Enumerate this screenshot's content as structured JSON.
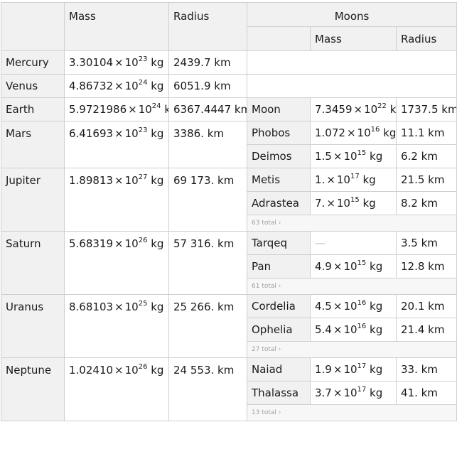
{
  "headers": {
    "mass": "Mass",
    "radius": "Radius",
    "moons": "Moons",
    "moon_mass": "Mass",
    "moon_radius": "Radius"
  },
  "planets": [
    {
      "name": "Mercury",
      "mass_mantissa": "3.30104",
      "mass_exp": "23",
      "radius": "2439.7 km",
      "moons": [],
      "total": ""
    },
    {
      "name": "Venus",
      "mass_mantissa": "4.86732",
      "mass_exp": "24",
      "radius": "6051.9 km",
      "moons": [],
      "total": ""
    },
    {
      "name": "Earth",
      "mass_mantissa": "5.9721986",
      "mass_exp": "24",
      "radius": "6367.4447 km",
      "moons": [
        {
          "name": "Moon",
          "mass_mantissa": "7.3459",
          "mass_exp": "22",
          "radius": "1737.5 km"
        }
      ],
      "total": ""
    },
    {
      "name": "Mars",
      "mass_mantissa": "6.41693",
      "mass_exp": "23",
      "radius": "3386. km",
      "moons": [
        {
          "name": "Phobos",
          "mass_mantissa": "1.072",
          "mass_exp": "16",
          "radius": "11.1 km"
        },
        {
          "name": "Deimos",
          "mass_mantissa": "1.5",
          "mass_exp": "15",
          "radius": "6.2 km"
        }
      ],
      "total": ""
    },
    {
      "name": "Jupiter",
      "mass_mantissa": "1.89813",
      "mass_exp": "27",
      "radius": "69 173. km",
      "moons": [
        {
          "name": "Metis",
          "mass_mantissa": "1.",
          "mass_exp": "17",
          "radius": "21.5 km"
        },
        {
          "name": "Adrastea",
          "mass_mantissa": "7.",
          "mass_exp": "15",
          "radius": "8.2 km"
        }
      ],
      "total": "63 total ›"
    },
    {
      "name": "Saturn",
      "mass_mantissa": "5.68319",
      "mass_exp": "26",
      "radius": "57 316. km",
      "moons": [
        {
          "name": "Tarqeq",
          "mass_mantissa": "",
          "mass_exp": "",
          "mass_missing": "—",
          "radius": "3.5 km"
        },
        {
          "name": "Pan",
          "mass_mantissa": "4.9",
          "mass_exp": "15",
          "radius": "12.8 km"
        }
      ],
      "total": "61 total ›"
    },
    {
      "name": "Uranus",
      "mass_mantissa": "8.68103",
      "mass_exp": "25",
      "radius": "25 266. km",
      "moons": [
        {
          "name": "Cordelia",
          "mass_mantissa": "4.5",
          "mass_exp": "16",
          "radius": "20.1 km"
        },
        {
          "name": "Ophelia",
          "mass_mantissa": "5.4",
          "mass_exp": "16",
          "radius": "21.4 km"
        }
      ],
      "total": "27 total ›"
    },
    {
      "name": "Neptune",
      "mass_mantissa": "1.02410",
      "mass_exp": "26",
      "radius": "24 553. km",
      "moons": [
        {
          "name": "Naiad",
          "mass_mantissa": "1.9",
          "mass_exp": "17",
          "radius": "33. km"
        },
        {
          "name": "Thalassa",
          "mass_mantissa": "3.7",
          "mass_exp": "17",
          "radius": "41. km"
        }
      ],
      "total": "13 total ›"
    }
  ],
  "units": {
    "times": "×",
    "ten": "10",
    "kg": "kg"
  }
}
